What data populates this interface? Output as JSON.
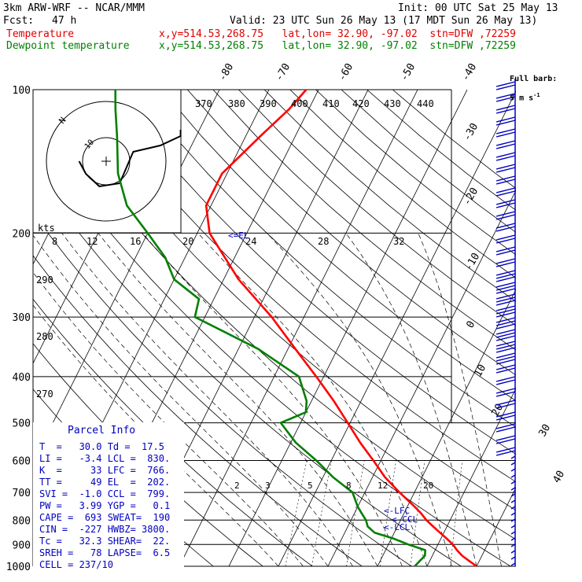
{
  "header": {
    "model": "3km ARW-WRF -- NCAR/MMM",
    "init": "Init: 00 UTC Sat 25 May 13",
    "fcst_label": "Fcst:",
    "fcst_value": "47 h",
    "valid": "Valid: 23 UTC Sun 26 May 13 (17 MDT Sun 26 May 13)",
    "temperature_label": "Temperature",
    "temperature_info": "x,y=514.53,268.75   lat,lon= 32.90, -97.02  stn=DFW ,72259",
    "dewpoint_label": "Dewpoint temperature",
    "dewpoint_info": "x,y=514.53,268.75   lat,lon= 32.90, -97.02  stn=DFW ,72259"
  },
  "colors": {
    "temperature": "#ff0000",
    "dewpoint": "#008000",
    "isotherm": "#000000",
    "wind_barb": "#0000c0",
    "parcel_text": "#0000c0"
  },
  "full_barb_legend": "Full barb:",
  "full_barb_value": "5 m s",
  "full_barb_exp": "-1",
  "hodograph": {
    "kts_label": "kts",
    "wind_speed_ticks": [
      "8",
      "12",
      "16",
      "20",
      "24",
      "28",
      "32"
    ],
    "ring_label": "10",
    "north_label": "N"
  },
  "el_label": "<=EL",
  "lfc_label": "<-LFC",
  "ccl_label": "<-CCL",
  "lcl_label": "<-LCL",
  "mixing_ratio_labels": [
    "2",
    "3",
    "5",
    "8",
    "12",
    "20"
  ],
  "theta_labels": [
    "370",
    "380",
    "390",
    "400",
    "410",
    "420",
    "430",
    "440"
  ],
  "theta_labels_left": [
    "290",
    "280",
    "270"
  ],
  "parcel_info": {
    "title": "Parcel Info",
    "rows": [
      "T  =   30.0 Td =  17.5",
      "LI =   -3.4 LCL =  830.",
      "K  =     33 LFC =  766.",
      "TT =     49 EL  =  202.",
      "SVI =  -1.0 CCL =  799.",
      "PW =   3.99 YGP =   0.1",
      "CAPE =  693 SWEAT=  190",
      "CIN =  -227 HWBZ= 3800.",
      "Tc =   32.3 SHEAR=  22.",
      "SREH =   78 LAPSE=  6.5",
      "CELL = 237/10"
    ]
  },
  "chart_data": {
    "type": "line",
    "title": "",
    "yaxis": {
      "label": "",
      "scale": "log",
      "range": [
        1000,
        100
      ],
      "ticks": [
        100,
        200,
        300,
        400,
        500,
        600,
        700,
        800,
        900,
        1000
      ]
    },
    "isotherm_labels_top": [
      -80,
      -70,
      -60,
      -50,
      -40
    ],
    "isotherm_labels_right": [
      -30,
      -20,
      -10,
      0,
      10,
      20,
      30,
      40
    ],
    "series": [
      {
        "name": "Temperature",
        "pressure_hPa": [
          1000,
          975,
          950,
          925,
          900,
          875,
          850,
          825,
          800,
          775,
          750,
          700,
          650,
          600,
          550,
          500,
          450,
          400,
          350,
          300,
          250,
          200,
          175,
          150,
          125,
          110,
          100
        ],
        "temperature_C": [
          30,
          28.0,
          26.0,
          24.4,
          23.0,
          21.2,
          19.2,
          17.2,
          15.2,
          13.5,
          11.5,
          7.0,
          2.5,
          -1.5,
          -6.0,
          -10.5,
          -15.5,
          -21.5,
          -28.5,
          -36.5,
          -47.0,
          -57.5,
          -61.0,
          -61.0,
          -57.0,
          -54.0,
          -52.5
        ]
      },
      {
        "name": "Dewpoint temperature",
        "pressure_hPa": [
          1000,
          975,
          950,
          925,
          900,
          875,
          850,
          825,
          800,
          775,
          750,
          700,
          650,
          600,
          550,
          500,
          475,
          450,
          400,
          350,
          300,
          275,
          250,
          225,
          200,
          175,
          150,
          125,
          110,
          100
        ],
        "dewpoint_C": [
          17.5,
          18.0,
          18.5,
          18.0,
          14.0,
          10.5,
          6.0,
          4.0,
          3.0,
          1.5,
          0.0,
          -2.5,
          -8.0,
          -13.0,
          -19.0,
          -24.0,
          -20.0,
          -21.0,
          -25.0,
          -36.0,
          -52.0,
          -53.0,
          -60.0,
          -64.0,
          -70.0,
          -77.0,
          -82.0,
          -86.0,
          -89.0,
          -91.0
        ]
      }
    ],
    "hodograph_uv_kts": [
      [
        -8,
        0
      ],
      [
        -6,
        -4
      ],
      [
        -2,
        -8
      ],
      [
        4,
        -7
      ],
      [
        6,
        -2
      ],
      [
        8,
        3
      ],
      [
        16,
        5
      ],
      [
        22,
        8
      ],
      [
        22,
        10
      ]
    ]
  }
}
